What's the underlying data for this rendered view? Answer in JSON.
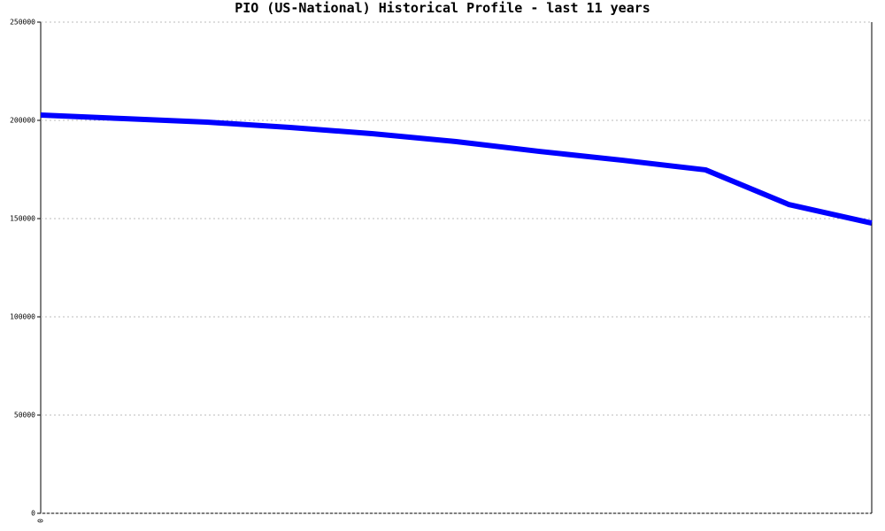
{
  "chart_data": {
    "type": "line",
    "title": "PIO (US-National) Historical Profile - last 11 years",
    "categories": [
      "0",
      null,
      null,
      null,
      null,
      null,
      null,
      null,
      null,
      null,
      null
    ],
    "series": [
      {
        "color": "#0000ff",
        "values": [
          202700,
          200900,
          199100,
          196400,
          193200,
          189200,
          184200,
          179700,
          174800,
          157200,
          147700
        ]
      }
    ],
    "ylim": [
      0,
      250000
    ],
    "yticks": [
      0,
      50000,
      100000,
      150000,
      200000,
      250000
    ],
    "grid": true
  }
}
